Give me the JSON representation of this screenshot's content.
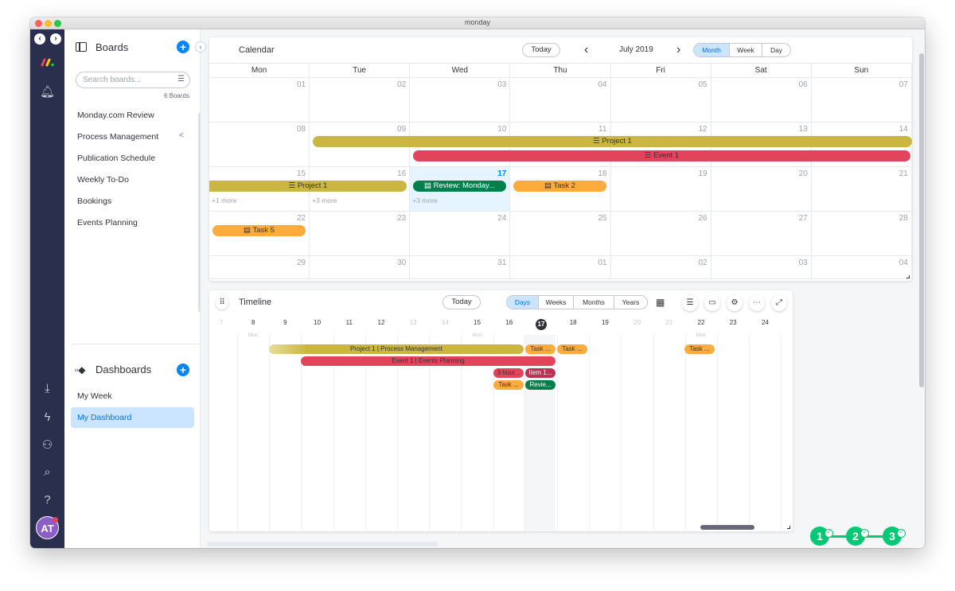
{
  "window": {
    "title": "monday"
  },
  "leftbar": {
    "back_label": "‹",
    "forward_label": "›",
    "avatar_initials": "AT",
    "brand_colors": [
      "#ff3d57",
      "#ffcb00",
      "#00d647"
    ]
  },
  "sidepanel": {
    "boards_title": "Boards",
    "search_placeholder": "Search boards...",
    "boards_count": "6 Boards",
    "boards": [
      "Monday.com Review",
      "Process Management",
      "Publication Schedule",
      "Weekly To-Do",
      "Bookings",
      "Events Planning"
    ],
    "dashboards_title": "Dashboards",
    "dashboards": [
      "My Week",
      "My Dashboard"
    ],
    "active_dashboard": "My Dashboard"
  },
  "calendar": {
    "title": "Calendar",
    "today_label": "Today",
    "month_label": "July 2019",
    "views": [
      "Month",
      "Week",
      "Day"
    ],
    "active_view": "Month",
    "weekdays": [
      "Mon",
      "Tue",
      "Wed",
      "Thu",
      "Fri",
      "Sat",
      "Sun"
    ],
    "weeks": [
      [
        "01",
        "02",
        "03",
        "04",
        "05",
        "06",
        "07"
      ],
      [
        "08",
        "09",
        "10",
        "11",
        "12",
        "13",
        "14"
      ],
      [
        "15",
        "16",
        "17",
        "18",
        "19",
        "20",
        "21"
      ],
      [
        "22",
        "23",
        "24",
        "25",
        "26",
        "27",
        "28"
      ],
      [
        "29",
        "30",
        "31",
        "01",
        "02",
        "03",
        "04"
      ]
    ],
    "today_date": "17",
    "events": {
      "project1_w2": "Project 1",
      "event1_w2": "Event 1",
      "project1_w3": "Project 1",
      "review": "Review: Monday...",
      "task2": "Task 2",
      "task5": "Task 5"
    },
    "more_labels": [
      "+1 more",
      "+3 more",
      "+3 more"
    ]
  },
  "timeline": {
    "title": "Timeline",
    "today_label": "Today",
    "views": [
      "Days",
      "Weeks",
      "Months",
      "Years"
    ],
    "active_view": "Days",
    "days": [
      "7",
      "8",
      "9",
      "10",
      "11",
      "12",
      "13",
      "14",
      "15",
      "16",
      "17",
      "18",
      "19",
      "20",
      "21",
      "22",
      "23",
      "24"
    ],
    "day_sub": {
      "8": "Mon",
      "15": "Mon",
      "22": "Mon"
    },
    "today_day": "17",
    "bars": {
      "project": "Project 1 | Process Management",
      "event": "Event 1 | Events Planning",
      "task_a": "Task ...",
      "task_b": "Task ...",
      "task_c": "Task ...",
      "hours": "3 hour...",
      "item": "Item 1...",
      "task_d": "Task ...",
      "review": "Revie..."
    }
  },
  "steps": [
    "1",
    "2",
    "3"
  ],
  "colors": {
    "project": "#cab641",
    "event": "#e2445c",
    "task": "#fdab3d",
    "review": "#037f4c",
    "item": "#bb3354",
    "hours": "#e2445c",
    "accent": "#0085ff",
    "step": "#00c875"
  }
}
